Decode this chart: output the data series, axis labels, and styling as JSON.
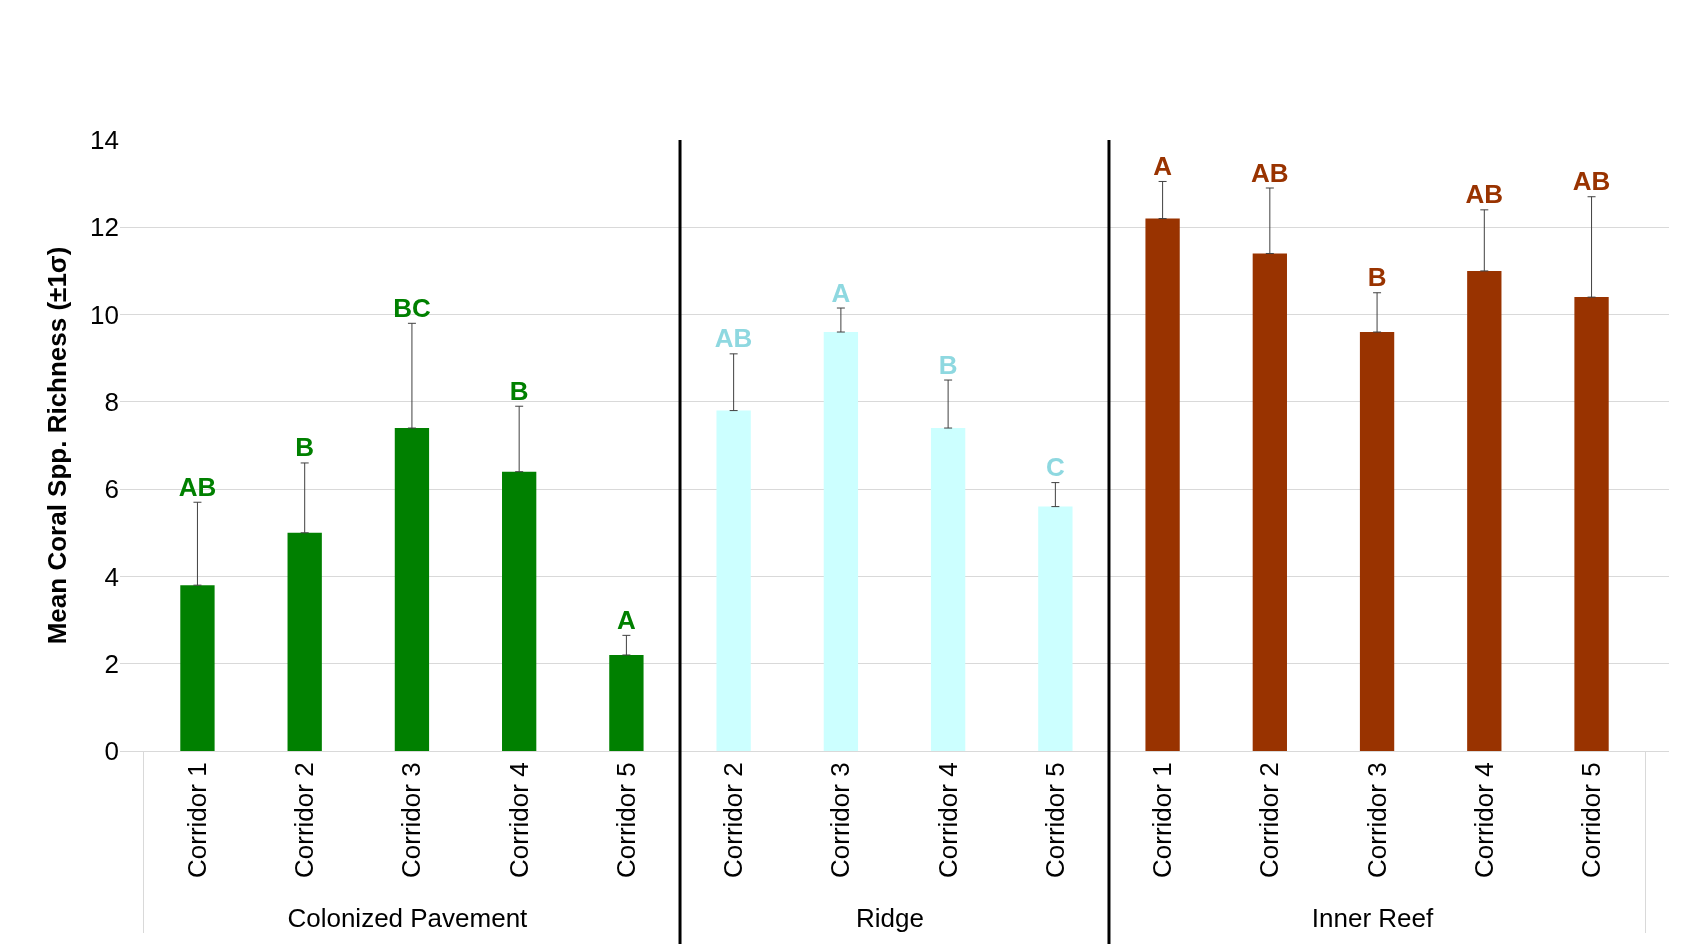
{
  "chart_data": {
    "type": "bar",
    "ylabel": "Mean Coral Spp. Richness (±1σ)",
    "categories": [
      "Corridor 1",
      "Corridor 2",
      "Corridor 3",
      "Corridor 4",
      "Corridor 5",
      "Corridor 2",
      "Corridor 3",
      "Corridor 4",
      "Corridor 5",
      "Corridor 1",
      "Corridor 2",
      "Corridor 3",
      "Corridor 4",
      "Corridor 5"
    ],
    "series": [
      {
        "color": "#008000",
        "values": [
          3.8,
          5.0,
          7.4,
          6.4,
          2.2,
          null,
          null,
          null,
          null,
          null,
          null,
          null,
          null,
          null
        ],
        "errors": [
          [
            3.8,
            5.7
          ],
          [
            5.0,
            6.6
          ],
          [
            7.4,
            9.8
          ],
          [
            6.4,
            7.9
          ],
          [
            2.2,
            2.65
          ],
          null,
          null,
          null,
          null,
          null,
          null,
          null,
          null,
          null
        ]
      },
      {
        "color": "#ccffff",
        "values": [
          null,
          null,
          null,
          null,
          null,
          7.8,
          9.6,
          7.4,
          5.6,
          null,
          null,
          null,
          null,
          null
        ],
        "errors": [
          null,
          null,
          null,
          null,
          null,
          [
            7.8,
            9.1
          ],
          [
            9.6,
            10.15
          ],
          [
            7.4,
            8.5
          ],
          [
            5.6,
            6.15
          ],
          null,
          null,
          null,
          null,
          null
        ]
      },
      {
        "color": "#993300",
        "values": [
          null,
          null,
          null,
          null,
          null,
          null,
          null,
          null,
          null,
          12.2,
          11.4,
          9.6,
          11.0,
          10.4
        ],
        "errors": [
          null,
          null,
          null,
          null,
          null,
          null,
          null,
          null,
          null,
          [
            12.2,
            13.05
          ],
          [
            11.4,
            12.9
          ],
          [
            9.6,
            10.5
          ],
          [
            11.0,
            12.4
          ],
          [
            10.4,
            12.7
          ]
        ]
      }
    ],
    "annotations": [
      "Colonized Pavement",
      "Ridge",
      "Inner Reef",
      "AB",
      "B",
      "BC",
      "B",
      "A",
      "AB",
      "A",
      "B",
      "C",
      "A",
      "AB",
      "B",
      "AB",
      "AB"
    ],
    "ylim": [
      0,
      14
    ],
    "yticks": [
      0,
      2,
      4,
      6,
      8,
      10,
      12,
      14
    ],
    "grid": "y",
    "legend": false
  }
}
